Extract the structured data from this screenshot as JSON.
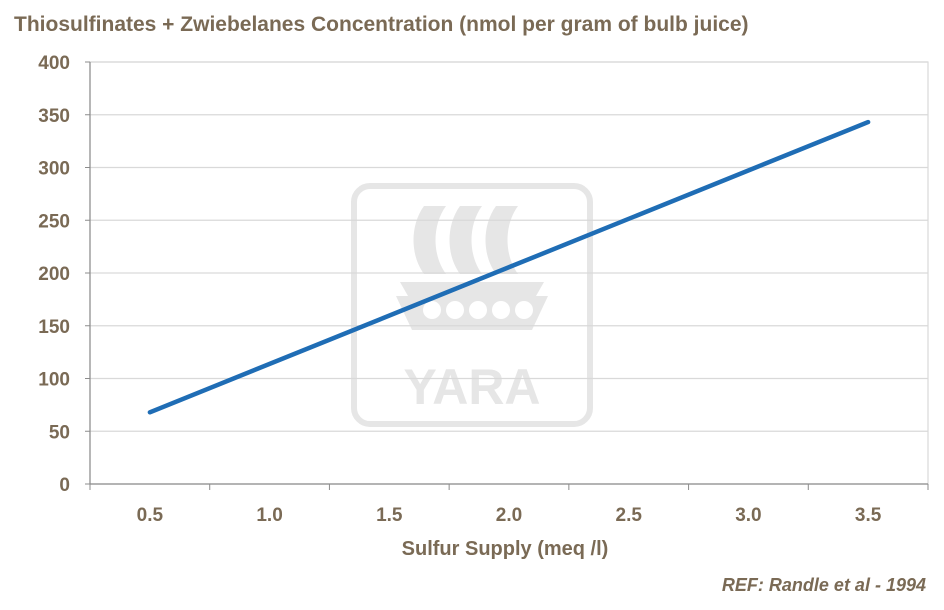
{
  "chart_data": {
    "type": "line",
    "title": "Thiosulfinates + Zwiebelanes Concentration (nmol per gram of bulb juice)",
    "xlabel": "Sulfur Supply (meq /l)",
    "ylabel": "",
    "x": [
      0.5,
      3.5
    ],
    "x_tick_labels": [
      "0.5",
      "1.0",
      "1.5",
      "2.0",
      "2.5",
      "3.0",
      "3.5"
    ],
    "y_ticks": [
      0,
      50,
      100,
      150,
      200,
      250,
      300,
      350,
      400
    ],
    "ylim": [
      0,
      400
    ],
    "grid": true,
    "series": [
      {
        "name": "Thiosulfinates + Zwiebelanes",
        "x": [
          0.5,
          3.5
        ],
        "values": [
          68,
          343
        ],
        "color": "#1f6db5"
      }
    ],
    "annotation": "REF: Randle et al - 1994",
    "watermark": "YARA"
  },
  "colors": {
    "text": "#7a6a55",
    "grid": "#d9d9d9",
    "axis": "#8c8c8c",
    "line": "#1f6db5",
    "watermark": "#e3e3e3"
  }
}
